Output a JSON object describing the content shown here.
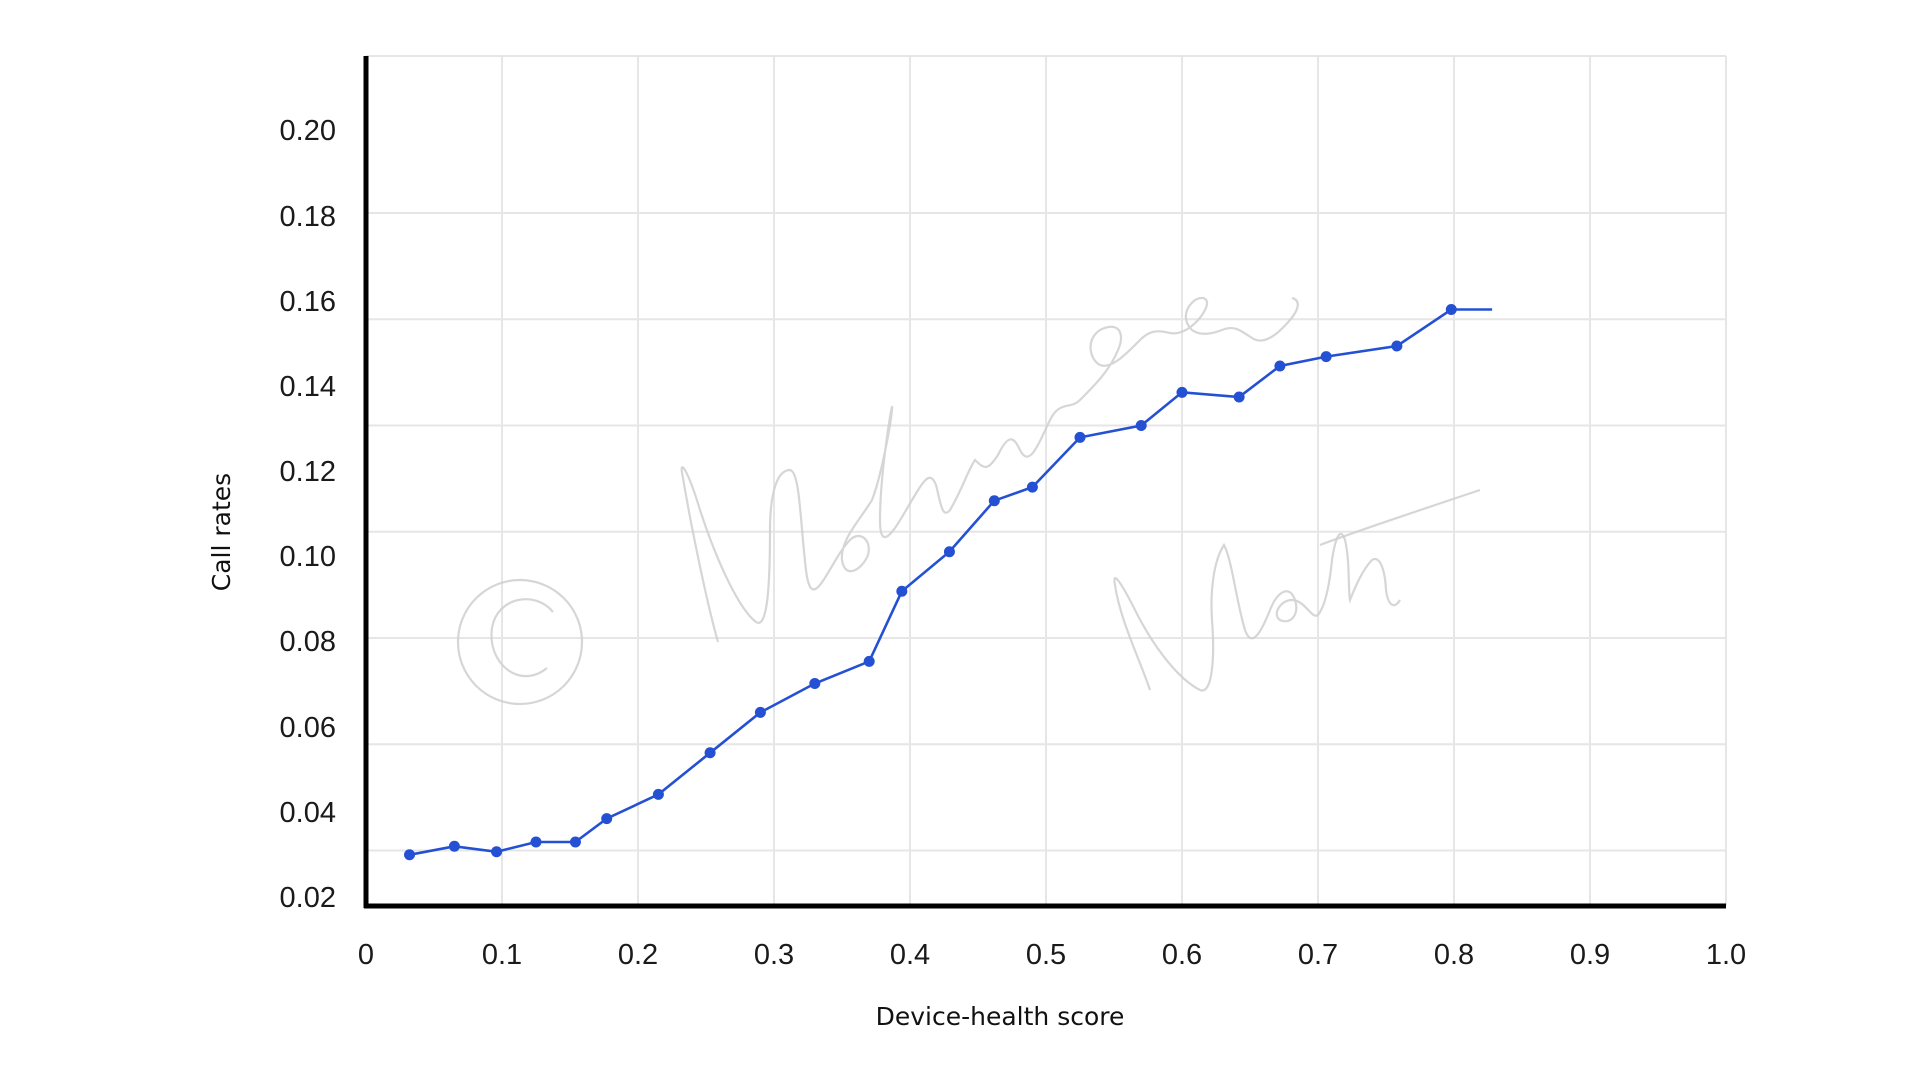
{
  "chart_data": {
    "type": "line",
    "xlabel": "Device-health score",
    "ylabel": "Call rates",
    "xlim": [
      0,
      1.0
    ],
    "ylim": [
      0.02,
      0.22
    ],
    "x_ticks": [
      "0",
      "0.1",
      "0.2",
      "0.3",
      "0.4",
      "0.5",
      "0.6",
      "0.7",
      "0.8",
      "0.9",
      "1.0"
    ],
    "y_ticks": [
      "0.20",
      "0.18",
      "0.16",
      "0.14",
      "0.12",
      "0.10",
      "0.08",
      "0.06",
      "0.04",
      "0.02"
    ],
    "grid": true,
    "series": [
      {
        "color": "#2450d3",
        "x": [
          0.032,
          0.065,
          0.096,
          0.125,
          0.154,
          0.177,
          0.215,
          0.253,
          0.29,
          0.33,
          0.37,
          0.394,
          0.429,
          0.462,
          0.49,
          0.525,
          0.57,
          0.6,
          0.642,
          0.672,
          0.706,
          0.758,
          0.798,
          0.828
        ],
        "y": [
          0.029,
          0.031,
          0.0297,
          0.032,
          0.032,
          0.0375,
          0.0432,
          0.053,
          0.0625,
          0.0693,
          0.0745,
          0.091,
          0.1003,
          0.1123,
          0.1155,
          0.1272,
          0.13,
          0.1378,
          0.1367,
          0.144,
          0.1462,
          0.1487,
          0.1573,
          0.1573
        ],
        "markers": [
          true,
          true,
          true,
          true,
          true,
          true,
          true,
          true,
          true,
          true,
          true,
          true,
          true,
          true,
          true,
          true,
          true,
          true,
          true,
          true,
          true,
          true,
          true,
          false
        ]
      }
    ],
    "watermark": "© Madhurima Nath"
  }
}
